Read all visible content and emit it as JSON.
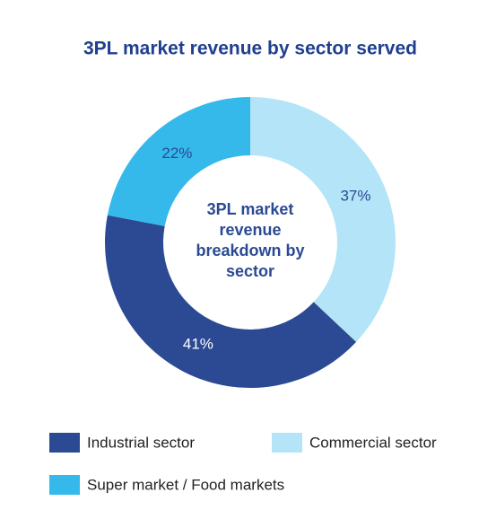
{
  "chart_data": {
    "type": "pie",
    "donut": true,
    "title": "3PL market revenue by sector served",
    "center_text": "3PL market revenue breakdown by sector",
    "categories": [
      "Commercial sector",
      "Industrial sector",
      "Super market / Food markets"
    ],
    "values": [
      37,
      41,
      22
    ],
    "value_labels": [
      "37%",
      "41%",
      "22%"
    ],
    "colors": [
      "#b3e4f8",
      "#2b4a93",
      "#35b9ea"
    ]
  }
}
